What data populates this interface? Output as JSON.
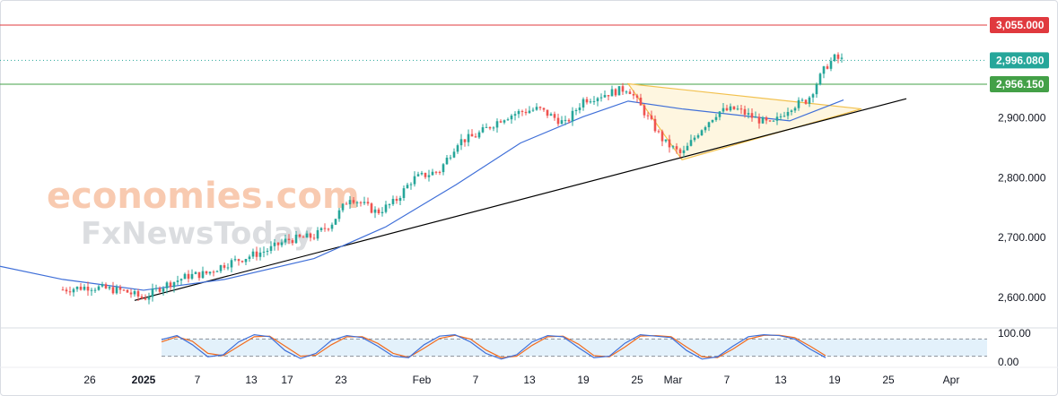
{
  "watermark": {
    "line1": "economies.com",
    "line2": "FxNewsToday"
  },
  "colors": {
    "up": "#26a69a",
    "down": "#ef5350",
    "ma": "#3f6fd8",
    "trendline": "#000000",
    "triangle": "#f2c14e",
    "triangle_fill": "#fdf3d6",
    "resistance": "#e0393e",
    "support": "#43a047",
    "current": "#26a69a",
    "stoch_k": "#3f6fd8",
    "stoch_d": "#f26b1d",
    "stoch_band": "#e3f1fb"
  },
  "chart_data": {
    "type": "candlestick",
    "instrument_hint": "price chart with moving average and stochastic oscillator",
    "x_ticks": [
      "26",
      "2025",
      "7",
      "13",
      "17",
      "23",
      "Feb",
      "7",
      "13",
      "19",
      "25",
      "Mar",
      "7",
      "13",
      "19",
      "25",
      "Apr"
    ],
    "y_ticks": [
      "2,600.000",
      "2,700.000",
      "2,800.000",
      "2,900.000"
    ],
    "ylim": [
      2555,
      3085
    ],
    "price_labels": [
      {
        "name": "resistance",
        "value": "3,055.000"
      },
      {
        "name": "current",
        "value": "2,996.080"
      },
      {
        "name": "support",
        "value": "2,956.150"
      }
    ],
    "levels": {
      "resistance": 3055.0,
      "current": 2996.08,
      "support": 2956.15
    },
    "trendline": {
      "from_x": "2024-12-31",
      "from_y": 2595,
      "to_x": "2025-03-27",
      "to_y": 2932
    },
    "triangle": {
      "points": [
        [
          "2025-02-24",
          2957
        ],
        [
          "2025-03-02",
          2830
        ],
        [
          "2025-03-22",
          2915
        ]
      ]
    },
    "close_series": [
      {
        "x": "2024-12-23",
        "y": 2613
      },
      {
        "x": "2024-12-26",
        "y": 2618
      },
      {
        "x": "2024-12-30",
        "y": 2610
      },
      {
        "x": "2025-01-01",
        "y": 2598
      },
      {
        "x": "2025-01-03",
        "y": 2618
      },
      {
        "x": "2025-01-06",
        "y": 2636
      },
      {
        "x": "2025-01-08",
        "y": 2640
      },
      {
        "x": "2025-01-10",
        "y": 2655
      },
      {
        "x": "2025-01-13",
        "y": 2670
      },
      {
        "x": "2025-01-15",
        "y": 2680
      },
      {
        "x": "2025-01-17",
        "y": 2696
      },
      {
        "x": "2025-01-20",
        "y": 2702
      },
      {
        "x": "2025-01-22",
        "y": 2725
      },
      {
        "x": "2025-01-24",
        "y": 2768
      },
      {
        "x": "2025-01-27",
        "y": 2742
      },
      {
        "x": "2025-01-29",
        "y": 2760
      },
      {
        "x": "2025-01-31",
        "y": 2798
      },
      {
        "x": "2025-02-03",
        "y": 2812
      },
      {
        "x": "2025-02-05",
        "y": 2860
      },
      {
        "x": "2025-02-07",
        "y": 2870
      },
      {
        "x": "2025-02-10",
        "y": 2900
      },
      {
        "x": "2025-02-12",
        "y": 2910
      },
      {
        "x": "2025-02-14",
        "y": 2915
      },
      {
        "x": "2025-02-17",
        "y": 2890
      },
      {
        "x": "2025-02-19",
        "y": 2930
      },
      {
        "x": "2025-02-21",
        "y": 2938
      },
      {
        "x": "2025-02-24",
        "y": 2950
      },
      {
        "x": "2025-02-26",
        "y": 2905
      },
      {
        "x": "2025-02-28",
        "y": 2860
      },
      {
        "x": "2025-03-02",
        "y": 2838
      },
      {
        "x": "2025-03-04",
        "y": 2880
      },
      {
        "x": "2025-03-06",
        "y": 2910
      },
      {
        "x": "2025-03-08",
        "y": 2915
      },
      {
        "x": "2025-03-10",
        "y": 2900
      },
      {
        "x": "2025-03-12",
        "y": 2888
      },
      {
        "x": "2025-03-14",
        "y": 2918
      },
      {
        "x": "2025-03-16",
        "y": 2930
      },
      {
        "x": "2025-03-18",
        "y": 2985
      },
      {
        "x": "2025-03-19",
        "y": 3000
      },
      {
        "x": "2025-03-20",
        "y": 2996
      }
    ],
    "moving_average": [
      {
        "x": "2024-12-16",
        "y": 2652
      },
      {
        "x": "2024-12-23",
        "y": 2630
      },
      {
        "x": "2025-01-01",
        "y": 2612
      },
      {
        "x": "2025-01-10",
        "y": 2630
      },
      {
        "x": "2025-01-20",
        "y": 2665
      },
      {
        "x": "2025-01-28",
        "y": 2718
      },
      {
        "x": "2025-02-05",
        "y": 2790
      },
      {
        "x": "2025-02-12",
        "y": 2858
      },
      {
        "x": "2025-02-19",
        "y": 2902
      },
      {
        "x": "2025-02-24",
        "y": 2928
      },
      {
        "x": "2025-03-02",
        "y": 2915
      },
      {
        "x": "2025-03-08",
        "y": 2905
      },
      {
        "x": "2025-03-14",
        "y": 2895
      },
      {
        "x": "2025-03-20",
        "y": 2930
      }
    ],
    "oscillator": {
      "y_ticks": [
        "100.00",
        "0.00"
      ],
      "levels": [
        80,
        20
      ],
      "k": [
        78,
        92,
        60,
        18,
        25,
        70,
        95,
        88,
        40,
        12,
        30,
        75,
        92,
        85,
        55,
        20,
        15,
        60,
        90,
        95,
        70,
        30,
        10,
        25,
        70,
        92,
        88,
        50,
        15,
        20,
        65,
        95,
        90,
        85,
        40,
        10,
        18,
        55,
        88,
        95,
        92,
        80,
        45,
        15
      ],
      "d": [
        70,
        88,
        72,
        30,
        22,
        55,
        88,
        90,
        55,
        20,
        24,
        60,
        88,
        88,
        65,
        30,
        16,
        48,
        82,
        93,
        80,
        42,
        15,
        20,
        58,
        88,
        90,
        62,
        22,
        18,
        52,
        90,
        92,
        88,
        52,
        18,
        15,
        45,
        80,
        93,
        93,
        85,
        55,
        22
      ]
    }
  }
}
